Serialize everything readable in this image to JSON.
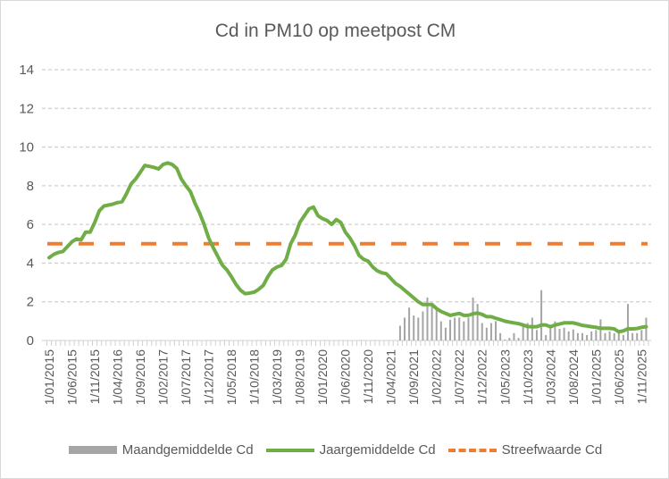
{
  "chart_data": {
    "type": "bar+line",
    "title": "Cd in PM10 op meetpost CM",
    "xlabel": "",
    "ylabel": "",
    "ylim": [
      0,
      14
    ],
    "yticks": [
      0,
      2,
      4,
      6,
      8,
      10,
      12,
      14
    ],
    "grid": true,
    "legend_position": "bottom",
    "x_tick_labels": [
      "1/01/2015",
      "1/06/2015",
      "1/11/2015",
      "1/04/2016",
      "1/09/2016",
      "1/02/2017",
      "1/07/2017",
      "1/12/2017",
      "1/05/2018",
      "1/10/2018",
      "1/03/2019",
      "1/08/2019",
      "1/01/2020",
      "1/06/2020",
      "1/11/2020",
      "1/04/2021",
      "1/09/2021",
      "1/02/2022",
      "1/07/2022",
      "1/12/2022",
      "1/05/2023",
      "1/10/2023",
      "1/03/2024",
      "1/08/2024",
      "1/01/2025",
      "1/06/2025",
      "1/11/2025"
    ],
    "categories": [
      "1/01/2015",
      "1/02/2015",
      "1/03/2015",
      "1/04/2015",
      "1/05/2015",
      "1/06/2015",
      "1/07/2015",
      "1/08/2015",
      "1/09/2015",
      "1/10/2015",
      "1/11/2015",
      "1/12/2015",
      "1/01/2016",
      "1/02/2016",
      "1/03/2016",
      "1/04/2016",
      "1/05/2016",
      "1/06/2016",
      "1/07/2016",
      "1/08/2016",
      "1/09/2016",
      "1/10/2016",
      "1/11/2016",
      "1/12/2016",
      "1/01/2017",
      "1/02/2017",
      "1/03/2017",
      "1/04/2017",
      "1/05/2017",
      "1/06/2017",
      "1/07/2017",
      "1/08/2017",
      "1/09/2017",
      "1/10/2017",
      "1/11/2017",
      "1/12/2017",
      "1/01/2018",
      "1/02/2018",
      "1/03/2018",
      "1/04/2018",
      "1/05/2018",
      "1/06/2018",
      "1/07/2018",
      "1/08/2018",
      "1/09/2018",
      "1/10/2018",
      "1/11/2018",
      "1/12/2018",
      "1/01/2019",
      "1/02/2019",
      "1/03/2019",
      "1/04/2019",
      "1/05/2019",
      "1/06/2019",
      "1/07/2019",
      "1/08/2019",
      "1/09/2019",
      "1/10/2019",
      "1/11/2019",
      "1/12/2019",
      "1/01/2020",
      "1/02/2020",
      "1/03/2020",
      "1/04/2020",
      "1/05/2020",
      "1/06/2020",
      "1/07/2020",
      "1/08/2020",
      "1/09/2020",
      "1/10/2020",
      "1/11/2020",
      "1/12/2020",
      "1/01/2021",
      "1/02/2021",
      "1/03/2021",
      "1/04/2021",
      "1/05/2021",
      "1/06/2021",
      "1/07/2021",
      "1/08/2021",
      "1/09/2021",
      "1/10/2021",
      "1/11/2021",
      "1/12/2021",
      "1/01/2022",
      "1/02/2022",
      "1/03/2022",
      "1/04/2022",
      "1/05/2022",
      "1/06/2022",
      "1/07/2022",
      "1/08/2022",
      "1/09/2022",
      "1/10/2022",
      "1/11/2022",
      "1/12/2022",
      "1/01/2023",
      "1/02/2023",
      "1/03/2023",
      "1/04/2023",
      "1/05/2023",
      "1/06/2023",
      "1/07/2023",
      "1/08/2023",
      "1/09/2023",
      "1/10/2023",
      "1/11/2023",
      "1/12/2023",
      "1/01/2024",
      "1/02/2024",
      "1/03/2024",
      "1/04/2024",
      "1/05/2024",
      "1/06/2024",
      "1/07/2024",
      "1/08/2024",
      "1/09/2024",
      "1/10/2024",
      "1/11/2024",
      "1/12/2024",
      "1/01/2025",
      "1/02/2025",
      "1/03/2025",
      "1/04/2025",
      "1/05/2025",
      "1/06/2025",
      "1/07/2025",
      "1/08/2025",
      "1/09/2025",
      "1/10/2025",
      "1/11/2025",
      "1/12/2025"
    ],
    "series": [
      {
        "name": "Maandgemiddelde Cd",
        "type": "bar",
        "color": "#a5a5a5",
        "values": [
          null,
          null,
          null,
          null,
          null,
          null,
          null,
          null,
          null,
          null,
          null,
          null,
          null,
          null,
          null,
          null,
          null,
          null,
          null,
          null,
          null,
          null,
          null,
          null,
          null,
          null,
          null,
          null,
          null,
          null,
          null,
          null,
          null,
          null,
          null,
          null,
          null,
          null,
          null,
          null,
          null,
          null,
          null,
          null,
          null,
          null,
          null,
          null,
          null,
          null,
          null,
          null,
          null,
          null,
          null,
          null,
          null,
          null,
          null,
          null,
          null,
          null,
          null,
          null,
          null,
          null,
          null,
          null,
          null,
          null,
          null,
          null,
          null,
          null,
          null,
          null,
          null,
          0.76,
          1.18,
          1.7,
          1.29,
          1.18,
          1.5,
          2.22,
          1.89,
          1.62,
          0.99,
          0.66,
          1.07,
          1.18,
          1.18,
          0.99,
          1.18,
          2.22,
          1.89,
          0.9,
          0.66,
          0.9,
          1.0,
          0.38,
          0.05,
          0.13,
          0.38,
          0.13,
          0.85,
          0.9,
          1.18,
          0.54,
          2.6,
          0.28,
          0.79,
          0.99,
          0.6,
          0.66,
          0.47,
          0.57,
          0.38,
          0.38,
          0.28,
          0.47,
          0.54,
          1.09,
          0.38,
          0.47,
          0.38,
          0.38,
          0.28,
          1.89,
          0.38,
          0.38,
          0.54,
          1.18
        ]
      },
      {
        "name": "Jaargemiddelde Cd",
        "type": "line",
        "color": "#70ad47",
        "values": [
          4.28,
          4.45,
          4.55,
          4.6,
          4.85,
          5.1,
          5.25,
          5.2,
          5.6,
          5.6,
          6.1,
          6.7,
          6.95,
          7.0,
          7.05,
          7.13,
          7.17,
          7.6,
          8.1,
          8.35,
          8.7,
          9.05,
          9.0,
          8.95,
          8.87,
          9.1,
          9.18,
          9.1,
          8.9,
          8.35,
          8.0,
          7.7,
          7.1,
          6.6,
          6.0,
          5.3,
          4.8,
          4.35,
          3.9,
          3.65,
          3.3,
          2.9,
          2.6,
          2.42,
          2.45,
          2.5,
          2.65,
          2.85,
          3.3,
          3.65,
          3.8,
          3.88,
          4.2,
          5.0,
          5.45,
          6.1,
          6.45,
          6.8,
          6.9,
          6.45,
          6.3,
          6.2,
          6.0,
          6.25,
          6.1,
          5.6,
          5.3,
          4.9,
          4.4,
          4.2,
          4.1,
          3.8,
          3.6,
          3.5,
          3.45,
          3.2,
          2.95,
          2.8,
          2.6,
          2.4,
          2.2,
          2.0,
          1.86,
          1.86,
          1.86,
          1.65,
          1.5,
          1.4,
          1.3,
          1.35,
          1.4,
          1.3,
          1.3,
          1.38,
          1.42,
          1.35,
          1.23,
          1.23,
          1.15,
          1.08,
          1.0,
          0.95,
          0.91,
          0.87,
          0.8,
          0.72,
          0.71,
          0.71,
          0.8,
          0.8,
          0.71,
          0.8,
          0.85,
          0.91,
          0.91,
          0.91,
          0.85,
          0.78,
          0.75,
          0.71,
          0.68,
          0.63,
          0.63,
          0.63,
          0.6,
          0.45,
          0.5,
          0.6,
          0.6,
          0.62,
          0.68,
          0.71
        ]
      },
      {
        "name": "Streefwaarde Cd",
        "type": "line",
        "style": "dashed",
        "color": "#ed7d31",
        "value": 5
      }
    ]
  }
}
